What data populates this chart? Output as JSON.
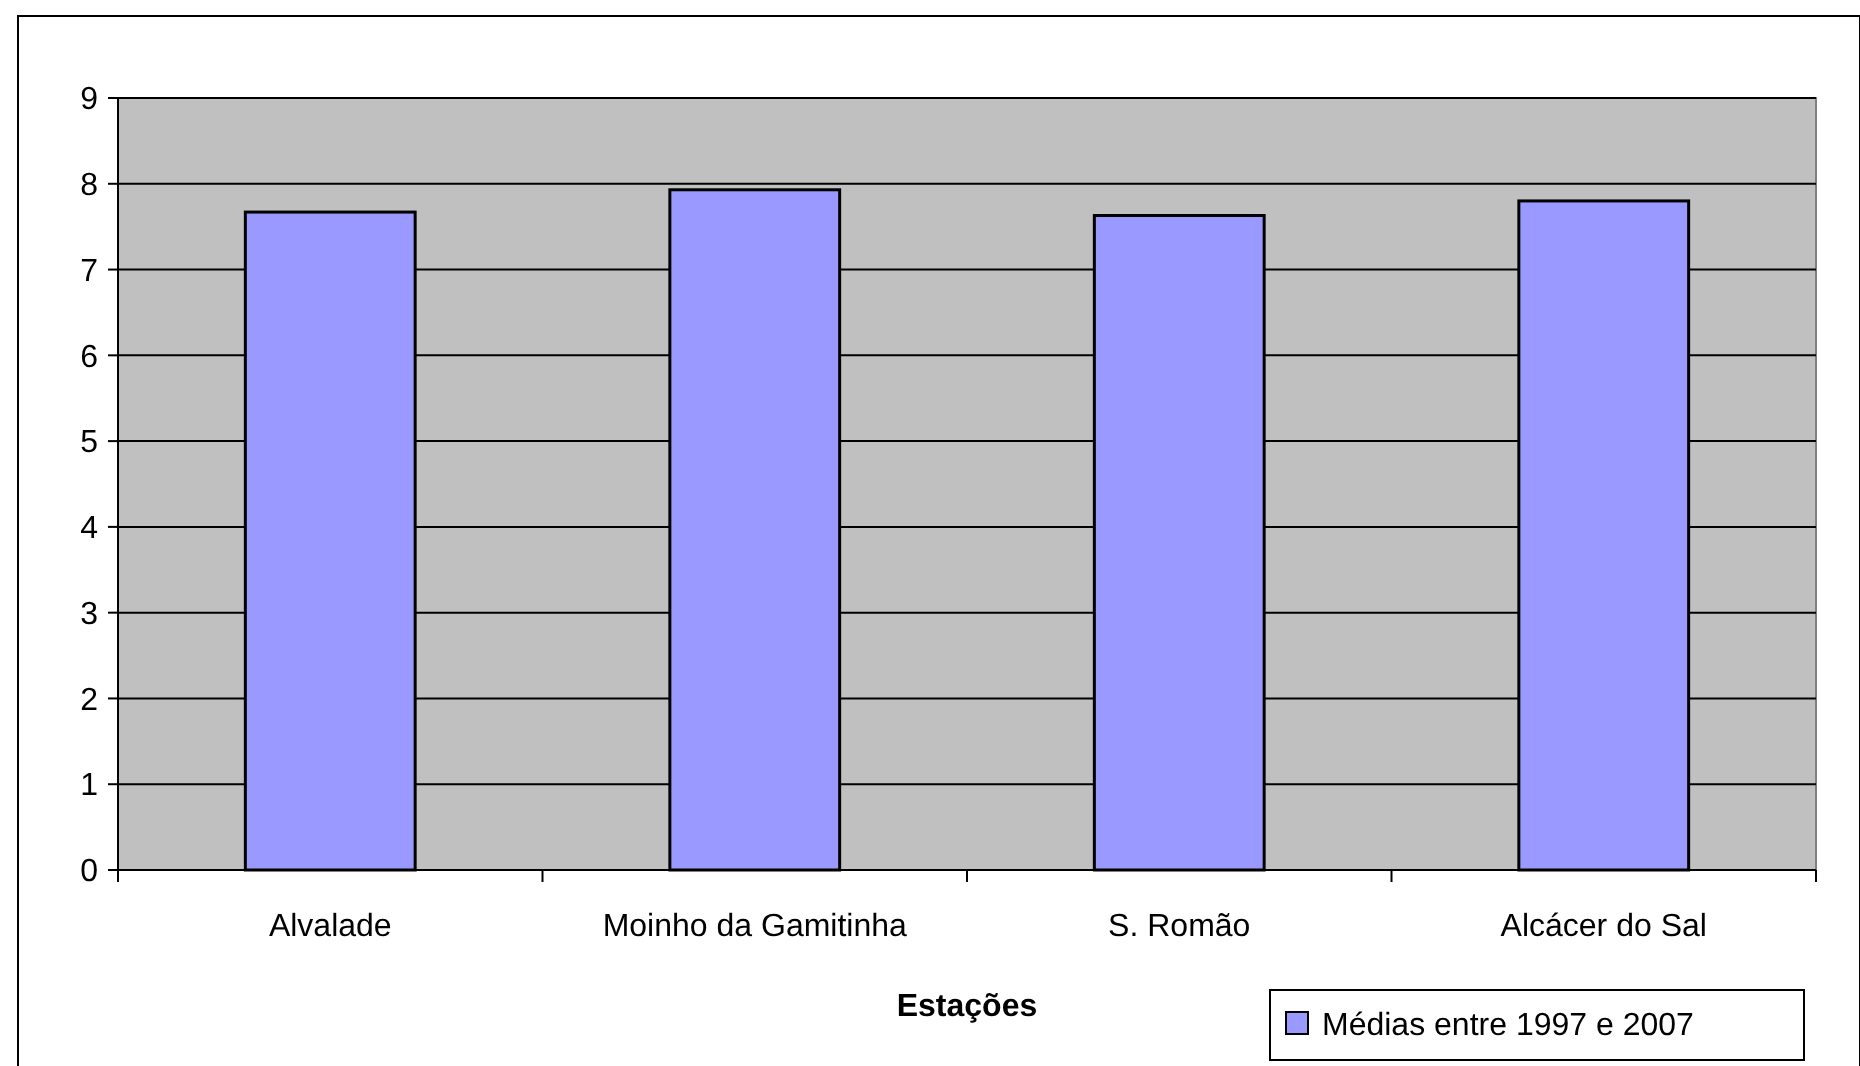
{
  "chart_data": {
    "type": "bar",
    "xlabel": "Estações",
    "categories": [
      "Alvalade",
      "Moinho da Gamitinha",
      "S. Romão",
      "Alcácer do Sal"
    ],
    "series": [
      {
        "name": "Médias entre 1997 e 2007",
        "color": "#9999ff",
        "values": [
          7.67,
          7.93,
          7.63,
          7.8
        ]
      }
    ],
    "ylim": [
      0,
      9
    ],
    "yticks": [
      0,
      1,
      2,
      3,
      4,
      5,
      6,
      7,
      8,
      9
    ],
    "grid": "y",
    "legend": "bottom right"
  }
}
